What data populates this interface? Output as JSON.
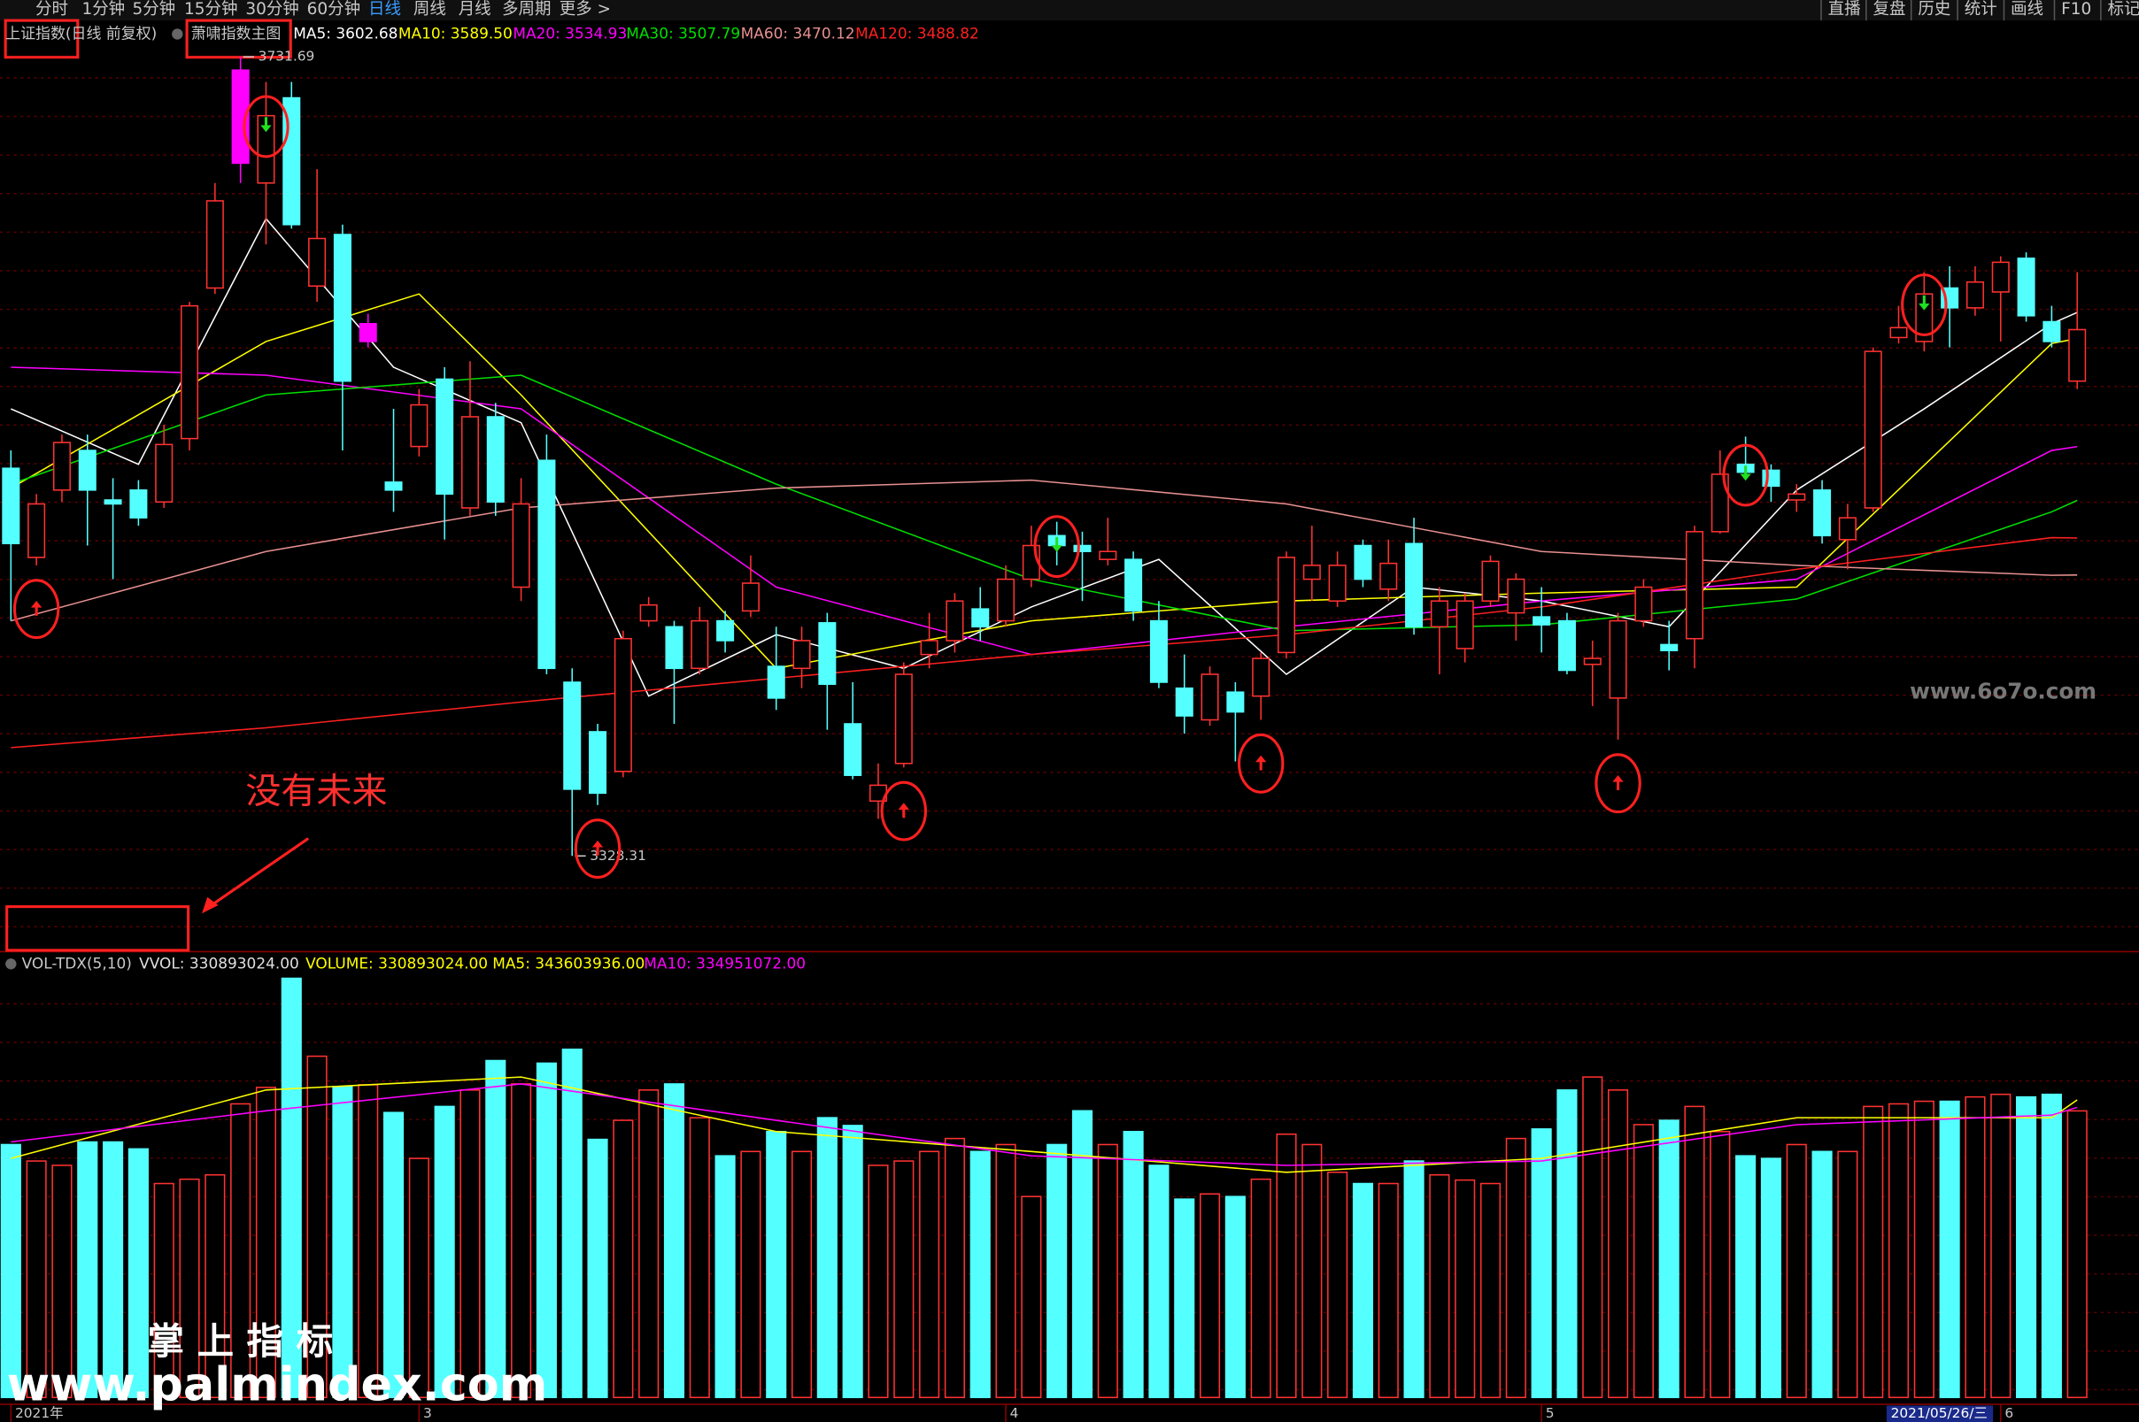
{
  "toolbar": {
    "left": [
      "分时",
      "1分钟",
      "5分钟",
      "15分钟",
      "30分钟",
      "60分钟",
      "日线",
      "周线",
      "月线",
      "多周期",
      "更多 >"
    ],
    "active": 6,
    "right": [
      "直播",
      "复盘",
      "历史",
      "统计",
      "画线",
      "F10",
      "标记"
    ]
  },
  "annotation": "没有未来",
  "watermarks": [
    "www.6o7o.com",
    "掌 上 指 标",
    "www.palmindex.com"
  ],
  "cursor_date": "2021/05/26/三",
  "chart_data": [
    {
      "type": "candlestick",
      "title": "上证指数(日线 前复权)",
      "subtitle": "萧啸指数主图",
      "categories": [
        "2021年",
        null,
        null,
        null,
        null,
        null,
        null,
        null,
        null,
        null,
        null,
        null,
        null,
        null,
        null,
        null,
        "3",
        null,
        null,
        null,
        null,
        null,
        null,
        null,
        null,
        null,
        null,
        null,
        null,
        null,
        null,
        null,
        null,
        null,
        null,
        null,
        null,
        null,
        null,
        "4",
        null,
        null,
        null,
        null,
        null,
        null,
        null,
        null,
        null,
        null,
        null,
        null,
        null,
        null,
        null,
        null,
        null,
        null,
        null,
        null,
        "5",
        null,
        null,
        null,
        null,
        null,
        null,
        null,
        null,
        null,
        null,
        null,
        null,
        null,
        null,
        null,
        null,
        null,
        "6",
        null,
        null,
        null
      ],
      "open": [
        3524,
        3479,
        3513,
        3533,
        3508,
        3513,
        3507,
        3539,
        3615,
        3678,
        3668,
        3711,
        3616,
        3642,
        3588,
        3517,
        3535,
        3569,
        3504,
        3550,
        3464,
        3528,
        3416,
        3391,
        3371,
        3447,
        3444,
        3423,
        3447,
        3452,
        3424,
        3423,
        3446,
        3395,
        3356,
        3375,
        3430,
        3437,
        3453,
        3447,
        3468,
        3490,
        3485,
        3478,
        3478,
        3447,
        3413,
        3397,
        3411,
        3409,
        3431,
        3468,
        3457,
        3485,
        3463,
        3486,
        3444,
        3433,
        3457,
        3451,
        3449,
        3447,
        3425,
        3408,
        3447,
        3435,
        3438,
        3492,
        3526,
        3523,
        3508,
        3513,
        3488,
        3504,
        3590,
        3588,
        3615,
        3605,
        3613,
        3630,
        3598,
        3568
      ],
      "high": [
        3533,
        3511,
        3541,
        3541,
        3519,
        3518,
        3546,
        3608,
        3668,
        3731.69,
        3719,
        3719,
        3675,
        3647,
        3602,
        3554,
        3564,
        3575,
        3578,
        3557,
        3519,
        3541,
        3423,
        3395,
        3442,
        3459,
        3447,
        3454,
        3452,
        3480,
        3444,
        3444,
        3451,
        3416,
        3375,
        3426,
        3451,
        3461,
        3464,
        3475,
        3495,
        3497,
        3492,
        3499,
        3482,
        3457,
        3430,
        3424,
        3416,
        3431,
        3482,
        3495,
        3482,
        3488,
        3488,
        3499,
        3464,
        3461,
        3480,
        3471,
        3464,
        3451,
        3437,
        3451,
        3468,
        3447,
        3495,
        3533,
        3540,
        3526,
        3516,
        3518,
        3506,
        3585,
        3606,
        3623,
        3626,
        3626,
        3631,
        3633,
        3606,
        3623
      ],
      "low": [
        3447,
        3475,
        3507,
        3485,
        3468,
        3495,
        3504,
        3533,
        3612,
        3668,
        3637,
        3645,
        3608,
        3533,
        3585,
        3502,
        3530,
        3488,
        3500,
        3500,
        3457,
        3420,
        3328.31,
        3354,
        3368,
        3444,
        3395,
        3420,
        3431,
        3449,
        3402,
        3413,
        3392,
        3367,
        3347,
        3373,
        3423,
        3431,
        3437,
        3444,
        3464,
        3475,
        3457,
        3475,
        3447,
        3413,
        3390,
        3394,
        3376,
        3397,
        3428,
        3457,
        3454,
        3464,
        3457,
        3440,
        3420,
        3426,
        3454,
        3437,
        3431,
        3420,
        3404,
        3387,
        3444,
        3422,
        3423,
        3491,
        3519,
        3507,
        3502,
        3486,
        3473,
        3502,
        3587,
        3583,
        3585,
        3601,
        3588,
        3598,
        3585,
        3564
      ],
      "close": [
        3486,
        3506,
        3537,
        3513,
        3506,
        3499,
        3536,
        3606,
        3659,
        3725,
        3702,
        3647,
        3640,
        3568,
        3597,
        3513,
        3556,
        3511,
        3550,
        3507,
        3506,
        3423,
        3362,
        3360,
        3438,
        3455,
        3423,
        3447,
        3437,
        3466,
        3408,
        3437,
        3415,
        3369,
        3364,
        3420,
        3437,
        3457,
        3444,
        3468,
        3485,
        3485,
        3482,
        3482,
        3452,
        3416,
        3399,
        3420,
        3401,
        3428,
        3479,
        3475,
        3475,
        3468,
        3476,
        3444,
        3457,
        3457,
        3477,
        3468,
        3445,
        3422,
        3428,
        3447,
        3464,
        3432,
        3492,
        3521,
        3522,
        3515,
        3511,
        3490,
        3499,
        3583,
        3595,
        3612,
        3605,
        3618,
        3628,
        3601,
        3588,
        3594
      ],
      "up_color": "#ff3232",
      "down_color": "#54ffff",
      "limit_up_color": "#ff00ff",
      "limit_up_indices": [
        9,
        14
      ],
      "buy_signals": [
        1,
        23,
        35,
        49,
        63
      ],
      "sell_signals": [
        10,
        41,
        68,
        75
      ],
      "ylim": [
        3280,
        3748
      ],
      "series": [
        {
          "name": "MA5",
          "color": "#ffffff",
          "legend_label": "MA5: 3602.68",
          "x": [
            0,
            5,
            10,
            15,
            20,
            25,
            30,
            35,
            40,
            45,
            50,
            55,
            60,
            65,
            70,
            75,
            80,
            81
          ],
          "values": [
            3554,
            3526,
            3650,
            3575,
            3547,
            3409,
            3440,
            3423,
            3454,
            3478,
            3420,
            3464,
            3457,
            3444,
            3513,
            3554,
            3597,
            3602.68
          ]
        },
        {
          "name": "MA10",
          "color": "#ffff00",
          "legend_label": "MA10: 3589.50",
          "x": [
            0,
            10,
            16,
            20,
            30,
            40,
            50,
            60,
            70,
            80,
            81
          ],
          "values": [
            3514,
            3588,
            3612,
            3561,
            3423,
            3447,
            3457,
            3461,
            3464,
            3587,
            3589.5
          ]
        },
        {
          "name": "MA20",
          "color": "#ff00ff",
          "legend_label": "MA20: 3534.93",
          "x": [
            0,
            10,
            20,
            30,
            40,
            50,
            60,
            70,
            80,
            81
          ],
          "values": [
            3575,
            3571,
            3554,
            3464,
            3430,
            3444,
            3457,
            3468,
            3533,
            3534.93
          ]
        },
        {
          "name": "MA30",
          "color": "#00e000",
          "legend_label": "MA30: 3507.79",
          "x": [
            0,
            10,
            20,
            30,
            40,
            50,
            60,
            70,
            80,
            81
          ],
          "values": [
            3516,
            3561,
            3571,
            3516,
            3468,
            3442,
            3445,
            3458,
            3502,
            3507.79
          ]
        },
        {
          "name": "MA60",
          "color": "#e89090",
          "legend_label": "MA60: 3470.12",
          "x": [
            0,
            10,
            20,
            30,
            40,
            50,
            60,
            70,
            80,
            81
          ],
          "values": [
            3447,
            3482,
            3504,
            3514,
            3518,
            3506,
            3482,
            3475,
            3470,
            3470.12
          ]
        },
        {
          "name": "MA120",
          "color": "#ff2020",
          "legend_label": "MA120: 3488.82",
          "x": [
            0,
            10,
            20,
            30,
            40,
            50,
            60,
            70,
            80,
            81
          ],
          "values": [
            3383,
            3393,
            3406,
            3418,
            3430,
            3440,
            3454,
            3473,
            3489,
            3488.82
          ]
        }
      ]
    },
    {
      "type": "bar",
      "title": "VOL-TDX(5,10)",
      "vvol_label": "VVOL: 330893024.00",
      "volume_label": "VOLUME: 330893024.00",
      "values": [
        292000000,
        273000000,
        268000000,
        295000000,
        295000000,
        287000000,
        247000000,
        252000000,
        257000000,
        339000000,
        358000000,
        484000000,
        394000000,
        359000000,
        361000000,
        329000000,
        276000000,
        336000000,
        355000000,
        389000000,
        362000000,
        386000000,
        402000000,
        298000000,
        320000000,
        355000000,
        362000000,
        323000000,
        279000000,
        284000000,
        307000000,
        284000000,
        323000000,
        314000000,
        268000000,
        273000000,
        284000000,
        299000000,
        284000000,
        292000000,
        232000000,
        292000000,
        331000000,
        292000000,
        307000000,
        268000000,
        229000000,
        235000000,
        232000000,
        252000000,
        304000000,
        292000000,
        260000000,
        247000000,
        247000000,
        273000000,
        257000000,
        251000000,
        247000000,
        299000000,
        310000000,
        355000000,
        370000000,
        355000000,
        315000000,
        320000000,
        336000000,
        307000000,
        279000000,
        276000000,
        292000000,
        284000000,
        284000000,
        336000000,
        339000000,
        342000000,
        342000000,
        347000000,
        350000000,
        347000000,
        350000000,
        330893024
      ],
      "ylim": [
        0,
        488000000
      ],
      "series": [
        {
          "name": "MA5",
          "color": "#ffff00",
          "legend_label": "MA5: 343603936.00",
          "x": [
            0,
            10,
            20,
            30,
            40,
            50,
            60,
            70,
            80,
            81
          ],
          "values": [
            276000000,
            355000000,
            370000000,
            307000000,
            284000000,
            260000000,
            276000000,
            323000000,
            323000000,
            343603936
          ]
        },
        {
          "name": "MA10",
          "color": "#ff00ff",
          "legend_label": "MA10: 334951072.00",
          "x": [
            0,
            10,
            20,
            30,
            40,
            50,
            60,
            70,
            80,
            81
          ],
          "values": [
            295000000,
            331000000,
            362000000,
            320000000,
            279000000,
            268000000,
            273000000,
            315000000,
            326000000,
            334951072
          ]
        }
      ]
    }
  ]
}
